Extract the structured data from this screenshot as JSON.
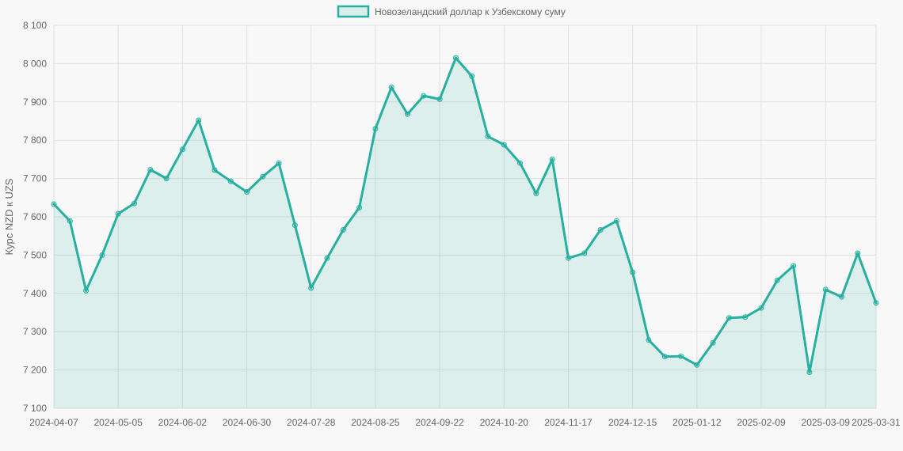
{
  "chart_data": {
    "type": "line",
    "title": "",
    "xlabel": "",
    "ylabel": "Курс NZD к UZS",
    "ylim": [
      7100,
      8100
    ],
    "y_ticks": [
      7100,
      7200,
      7300,
      7400,
      7500,
      7600,
      7700,
      7800,
      7900,
      8000,
      8100
    ],
    "y_tick_labels": [
      "7 100",
      "7 200",
      "7 300",
      "7 400",
      "7 500",
      "7 600",
      "7 700",
      "7 800",
      "7 900",
      "8 000",
      "8 100"
    ],
    "x_tick_labels": [
      "2024-04-07",
      "2024-05-05",
      "2024-06-02",
      "2024-06-30",
      "2024-07-28",
      "2024-08-25",
      "2024-09-22",
      "2024-10-20",
      "2024-11-17",
      "2024-12-15",
      "2025-01-12",
      "2025-02-09",
      "2025-03-09",
      "2025-03-31"
    ],
    "grid": true,
    "legend_position": "top",
    "colors": {
      "line": "#26b0a0",
      "fill": "#26b0a0",
      "grid": "#e0e0e0"
    },
    "series": [
      {
        "name": "Новозеландский доллар к Узбекскому суму",
        "x": [
          "2024-04-07",
          "2024-04-14",
          "2024-04-21",
          "2024-04-28",
          "2024-05-05",
          "2024-05-12",
          "2024-05-19",
          "2024-05-26",
          "2024-06-02",
          "2024-06-09",
          "2024-06-16",
          "2024-06-23",
          "2024-06-30",
          "2024-07-07",
          "2024-07-14",
          "2024-07-21",
          "2024-07-28",
          "2024-08-04",
          "2024-08-11",
          "2024-08-18",
          "2024-08-25",
          "2024-09-01",
          "2024-09-08",
          "2024-09-15",
          "2024-09-22",
          "2024-09-29",
          "2024-10-06",
          "2024-10-13",
          "2024-10-20",
          "2024-10-27",
          "2024-11-03",
          "2024-11-10",
          "2024-11-17",
          "2024-11-24",
          "2024-12-01",
          "2024-12-08",
          "2024-12-15",
          "2024-12-22",
          "2024-12-29",
          "2025-01-05",
          "2025-01-12",
          "2025-01-19",
          "2025-01-26",
          "2025-02-02",
          "2025-02-09",
          "2025-02-16",
          "2025-02-23",
          "2025-03-02",
          "2025-03-09",
          "2025-03-16",
          "2025-03-23",
          "2025-03-31"
        ],
        "values": [
          7633,
          7589,
          7407,
          7500,
          7608,
          7635,
          7723,
          7700,
          7776,
          7852,
          7722,
          7693,
          7665,
          7705,
          7740,
          7578,
          7414,
          7492,
          7566,
          7624,
          7830,
          7938,
          7868,
          7916,
          7907,
          8015,
          7967,
          7810,
          7788,
          7740,
          7661,
          7750,
          7492,
          7505,
          7566,
          7589,
          7455,
          7278,
          7235,
          7236,
          7213,
          7271,
          7336,
          7338,
          7362,
          7434,
          7472,
          7194,
          7410,
          7391,
          7505,
          7375
        ]
      }
    ]
  }
}
